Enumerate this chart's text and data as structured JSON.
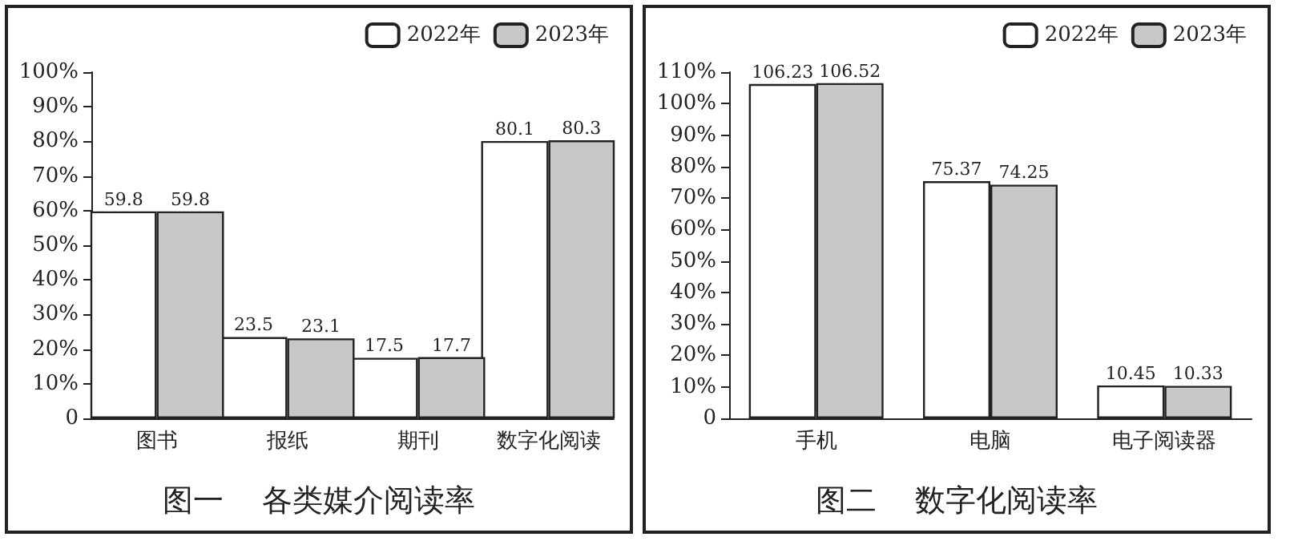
{
  "chart_data": [
    {
      "type": "bar",
      "title": "图一    各类媒介阅读率",
      "categories": [
        "图书",
        "报纸",
        "期刊",
        "数字化阅读"
      ],
      "series": [
        {
          "name": "2022年",
          "color": "#ffffff",
          "values": [
            59.8,
            23.5,
            17.5,
            80.1
          ]
        },
        {
          "name": "2023年",
          "color": "#c8c8c8",
          "values": [
            59.8,
            23.1,
            17.7,
            80.3
          ]
        }
      ],
      "ylim": [
        0,
        100
      ],
      "yticks": [
        {
          "value": 0,
          "label": "0"
        },
        {
          "value": 10,
          "label": "10%"
        },
        {
          "value": 20,
          "label": "20%"
        },
        {
          "value": 30,
          "label": "30%"
        },
        {
          "value": 40,
          "label": "40%"
        },
        {
          "value": 50,
          "label": "50%"
        },
        {
          "value": 60,
          "label": "60%"
        },
        {
          "value": 70,
          "label": "70%"
        },
        {
          "value": 80,
          "label": "80%"
        },
        {
          "value": 90,
          "label": "90%"
        },
        {
          "value": 100,
          "label": "100%"
        }
      ],
      "grid": false,
      "legend": "top right",
      "data_labels": true
    },
    {
      "type": "bar",
      "title": "图二    数字化阅读率",
      "categories": [
        "手机",
        "电脑",
        "电子阅读器"
      ],
      "series": [
        {
          "name": "2022年",
          "color": "#ffffff",
          "values": [
            106.23,
            75.37,
            10.45
          ]
        },
        {
          "name": "2023年",
          "color": "#c8c8c8",
          "values": [
            106.52,
            74.25,
            10.33
          ]
        }
      ],
      "ylim": [
        0,
        110
      ],
      "yticks": [
        {
          "value": 0,
          "label": "0"
        },
        {
          "value": 10,
          "label": "10%"
        },
        {
          "value": 20,
          "label": "20%"
        },
        {
          "value": 30,
          "label": "30%"
        },
        {
          "value": 40,
          "label": "40%"
        },
        {
          "value": 50,
          "label": "50%"
        },
        {
          "value": 60,
          "label": "60%"
        },
        {
          "value": 70,
          "label": "70%"
        },
        {
          "value": 80,
          "label": "80%"
        },
        {
          "value": 90,
          "label": "90%"
        },
        {
          "value": 100,
          "label": "100%"
        },
        {
          "value": 110,
          "label": "110%"
        }
      ],
      "grid": false,
      "legend": "top right",
      "data_labels": true
    }
  ]
}
